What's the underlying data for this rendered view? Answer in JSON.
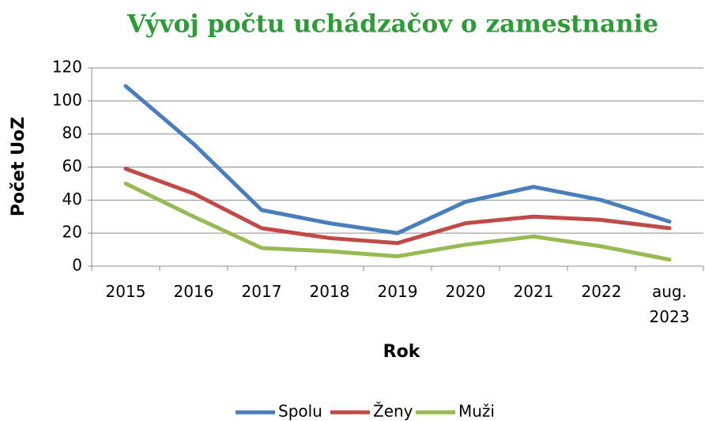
{
  "chart_data": {
    "type": "line",
    "title": "Vývoj počtu uchádzačov o zamestnanie",
    "xlabel": "Rok",
    "ylabel": "Počet UoZ",
    "categories": [
      "2015",
      "2016",
      "2017",
      "2018",
      "2019",
      "2020",
      "2021",
      "2022",
      "aug. 2023"
    ],
    "series": [
      {
        "name": "Spolu",
        "color": "#4a7ebb",
        "values": [
          109,
          74,
          34,
          26,
          20,
          39,
          48,
          40,
          27
        ]
      },
      {
        "name": "Ženy",
        "color": "#be4b48",
        "values": [
          59,
          44,
          23,
          17,
          14,
          26,
          30,
          28,
          23
        ]
      },
      {
        "name": "Muži",
        "color": "#98b954",
        "values": [
          50,
          30,
          11,
          9,
          6,
          13,
          18,
          12,
          4
        ]
      }
    ],
    "ylim": [
      0,
      120
    ],
    "yticks": [
      0,
      20,
      40,
      60,
      80,
      100,
      120
    ],
    "grid": true,
    "legend": "bottom"
  }
}
